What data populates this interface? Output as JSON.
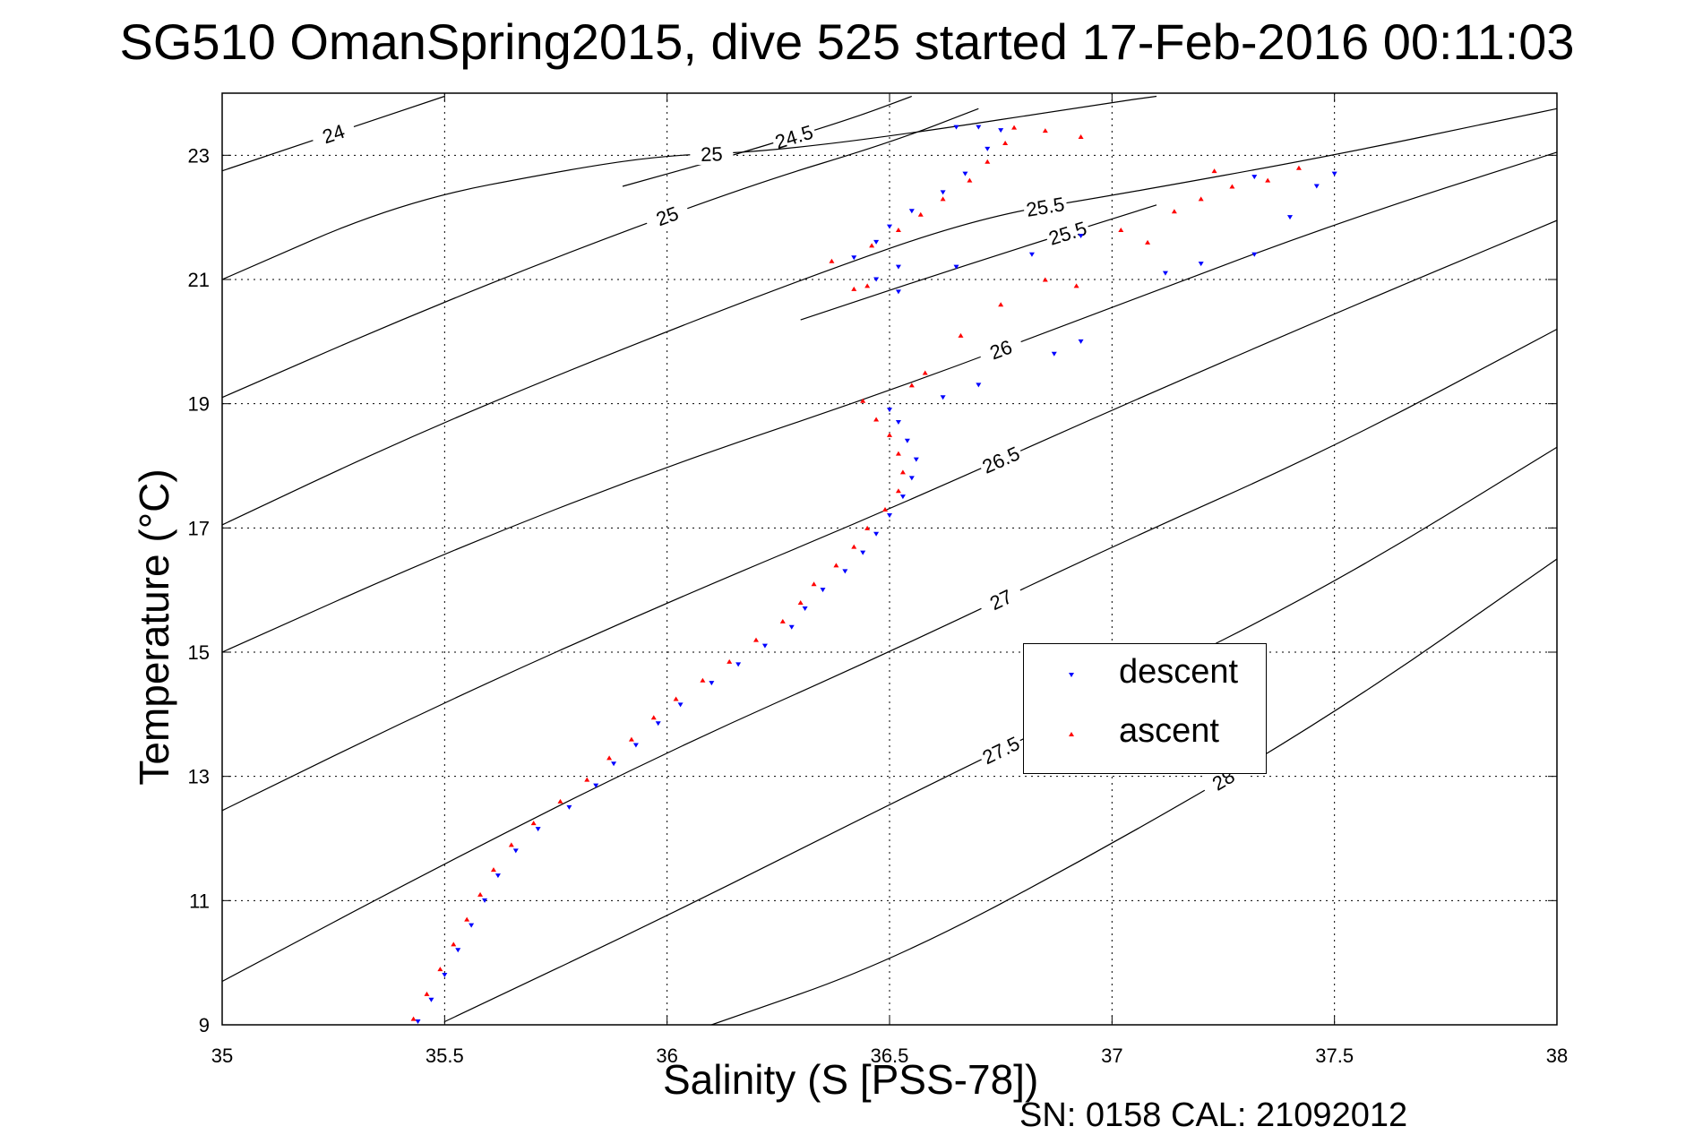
{
  "chart_data": {
    "type": "scatter",
    "title": "SG510 OmanSpring2015, dive 525 started 17-Feb-2016 00:11:03",
    "xlabel": "Salinity (S [PSS-78])",
    "ylabel": "Temperature (°C)",
    "xlim": [
      35,
      38
    ],
    "ylim": [
      9,
      24
    ],
    "xticks": [
      "35",
      "35.5",
      "36",
      "36.5",
      "37",
      "37.5",
      "38"
    ],
    "yticks": [
      "9",
      "11",
      "13",
      "15",
      "17",
      "19",
      "21",
      "23"
    ],
    "grid": true,
    "legend_position": "center-right",
    "density_contours": [
      {
        "label": "24",
        "points": [
          [
            35,
            22.75
          ],
          [
            35.5,
            23.95
          ]
        ]
      },
      {
        "label": "24.5",
        "points": [
          [
            35.9,
            22.5
          ],
          [
            36.15,
            23.0
          ],
          [
            36.42,
            23.6
          ],
          [
            36.55,
            23.95
          ]
        ]
      },
      {
        "label": "25",
        "points": [
          [
            35,
            21.0
          ],
          [
            35.4,
            22.25
          ],
          [
            35.8,
            22.8
          ],
          [
            36.0,
            23.0
          ],
          [
            36.2,
            23.05
          ],
          [
            36.5,
            23.3
          ],
          [
            37.0,
            23.85
          ],
          [
            37.1,
            23.95
          ]
        ]
      },
      {
        "label": "25",
        "points": [
          [
            35,
            19.1
          ],
          [
            35.4,
            20.35
          ],
          [
            35.8,
            21.5
          ],
          [
            36.2,
            22.55
          ],
          [
            36.5,
            23.2
          ],
          [
            36.7,
            23.75
          ]
        ]
      },
      {
        "label": "25.5",
        "points": [
          [
            35,
            17.05
          ],
          [
            35.4,
            18.4
          ],
          [
            35.8,
            19.6
          ],
          [
            36.3,
            21.0
          ],
          [
            36.7,
            22.0
          ],
          [
            37.0,
            22.35
          ],
          [
            37.5,
            23.0
          ],
          [
            37.9,
            23.6
          ],
          [
            38.0,
            23.75
          ]
        ]
      },
      {
        "label": "25.5",
        "points": [
          [
            36.3,
            20.35
          ],
          [
            36.7,
            21.3
          ],
          [
            37.1,
            22.2
          ]
        ]
      },
      {
        "label": "26",
        "points": [
          [
            35,
            15.0
          ],
          [
            35.5,
            16.6
          ],
          [
            36.0,
            18.0
          ],
          [
            36.5,
            19.2
          ],
          [
            37.0,
            20.55
          ],
          [
            37.5,
            21.9
          ],
          [
            38.0,
            23.05
          ]
        ]
      },
      {
        "label": "26.5",
        "points": [
          [
            35,
            12.45
          ],
          [
            35.5,
            14.2
          ],
          [
            36.0,
            15.8
          ],
          [
            36.5,
            17.3
          ],
          [
            37.0,
            18.9
          ],
          [
            37.5,
            20.45
          ],
          [
            38.0,
            21.95
          ]
        ]
      },
      {
        "label": "27",
        "points": [
          [
            35,
            9.7
          ],
          [
            35.5,
            11.6
          ],
          [
            36.0,
            13.4
          ],
          [
            36.5,
            15.0
          ],
          [
            37.0,
            16.7
          ],
          [
            37.5,
            18.3
          ],
          [
            38.0,
            20.2
          ]
        ]
      },
      {
        "label": "27.5",
        "points": [
          [
            35.5,
            9.05
          ],
          [
            36.0,
            10.75
          ],
          [
            36.5,
            12.55
          ],
          [
            37.0,
            14.3
          ],
          [
            37.5,
            16.1
          ],
          [
            38.0,
            18.3
          ]
        ]
      },
      {
        "label": "28",
        "points": [
          [
            36.1,
            9.0
          ],
          [
            36.5,
            10.0
          ],
          [
            37.0,
            11.9
          ],
          [
            37.5,
            14.0
          ],
          [
            38.0,
            16.5
          ]
        ]
      }
    ],
    "series": [
      {
        "name": "descent",
        "color": "#0000ff",
        "marker": "triangle-down",
        "points": [
          [
            35.44,
            9.05
          ],
          [
            35.47,
            9.4
          ],
          [
            35.5,
            9.8
          ],
          [
            35.53,
            10.2
          ],
          [
            35.56,
            10.6
          ],
          [
            35.59,
            11.0
          ],
          [
            35.62,
            11.4
          ],
          [
            35.66,
            11.8
          ],
          [
            35.71,
            12.15
          ],
          [
            35.78,
            12.5
          ],
          [
            35.84,
            12.85
          ],
          [
            35.88,
            13.2
          ],
          [
            35.93,
            13.5
          ],
          [
            35.98,
            13.85
          ],
          [
            36.03,
            14.15
          ],
          [
            36.1,
            14.5
          ],
          [
            36.16,
            14.8
          ],
          [
            36.22,
            15.1
          ],
          [
            36.28,
            15.4
          ],
          [
            36.31,
            15.7
          ],
          [
            36.35,
            16.0
          ],
          [
            36.4,
            16.3
          ],
          [
            36.44,
            16.6
          ],
          [
            36.47,
            16.9
          ],
          [
            36.5,
            17.2
          ],
          [
            36.53,
            17.5
          ],
          [
            36.55,
            17.8
          ],
          [
            36.56,
            18.1
          ],
          [
            36.54,
            18.4
          ],
          [
            36.52,
            18.7
          ],
          [
            36.5,
            18.9
          ],
          [
            36.62,
            19.1
          ],
          [
            36.7,
            19.3
          ],
          [
            36.87,
            19.8
          ],
          [
            36.93,
            20.0
          ],
          [
            36.52,
            20.8
          ],
          [
            36.47,
            21.0
          ],
          [
            36.52,
            21.2
          ],
          [
            36.42,
            21.35
          ],
          [
            36.47,
            21.6
          ],
          [
            36.5,
            21.85
          ],
          [
            36.55,
            22.1
          ],
          [
            36.62,
            22.4
          ],
          [
            36.67,
            22.7
          ],
          [
            36.72,
            23.1
          ],
          [
            36.75,
            23.4
          ],
          [
            36.7,
            23.45
          ],
          [
            36.65,
            23.45
          ],
          [
            36.93,
            21.7
          ],
          [
            36.82,
            21.4
          ],
          [
            36.65,
            21.2
          ],
          [
            37.12,
            21.1
          ],
          [
            37.2,
            21.25
          ],
          [
            37.32,
            21.4
          ],
          [
            37.4,
            22.0
          ],
          [
            37.5,
            22.7
          ],
          [
            37.46,
            22.5
          ],
          [
            37.32,
            22.65
          ]
        ]
      },
      {
        "name": "ascent",
        "color": "#ff0000",
        "marker": "triangle-up",
        "points": [
          [
            35.43,
            9.1
          ],
          [
            35.46,
            9.5
          ],
          [
            35.49,
            9.9
          ],
          [
            35.52,
            10.3
          ],
          [
            35.55,
            10.7
          ],
          [
            35.58,
            11.1
          ],
          [
            35.61,
            11.5
          ],
          [
            35.65,
            11.9
          ],
          [
            35.7,
            12.25
          ],
          [
            35.76,
            12.6
          ],
          [
            35.82,
            12.95
          ],
          [
            35.87,
            13.3
          ],
          [
            35.92,
            13.6
          ],
          [
            35.97,
            13.95
          ],
          [
            36.02,
            14.25
          ],
          [
            36.08,
            14.55
          ],
          [
            36.14,
            14.85
          ],
          [
            36.2,
            15.2
          ],
          [
            36.26,
            15.5
          ],
          [
            36.3,
            15.8
          ],
          [
            36.33,
            16.1
          ],
          [
            36.38,
            16.4
          ],
          [
            36.42,
            16.7
          ],
          [
            36.45,
            17.0
          ],
          [
            36.49,
            17.3
          ],
          [
            36.52,
            17.6
          ],
          [
            36.53,
            17.9
          ],
          [
            36.52,
            18.2
          ],
          [
            36.5,
            18.5
          ],
          [
            36.47,
            18.75
          ],
          [
            36.44,
            19.05
          ],
          [
            36.55,
            19.3
          ],
          [
            36.58,
            19.5
          ],
          [
            36.66,
            20.1
          ],
          [
            36.75,
            20.6
          ],
          [
            36.42,
            20.85
          ],
          [
            36.37,
            21.3
          ],
          [
            36.46,
            21.55
          ],
          [
            36.52,
            21.8
          ],
          [
            36.57,
            22.05
          ],
          [
            36.62,
            22.3
          ],
          [
            36.68,
            22.6
          ],
          [
            36.72,
            22.9
          ],
          [
            36.76,
            23.2
          ],
          [
            36.78,
            23.45
          ],
          [
            36.85,
            23.4
          ],
          [
            36.93,
            23.3
          ],
          [
            36.45,
            20.9
          ],
          [
            36.85,
            21.0
          ],
          [
            36.92,
            20.9
          ],
          [
            37.02,
            21.8
          ],
          [
            37.08,
            21.6
          ],
          [
            37.14,
            22.1
          ],
          [
            37.2,
            22.3
          ],
          [
            37.27,
            22.5
          ],
          [
            37.35,
            22.6
          ],
          [
            37.42,
            22.8
          ],
          [
            37.23,
            22.75
          ]
        ]
      }
    ]
  },
  "legend": {
    "descent": "descent",
    "ascent": "ascent"
  },
  "footer": {
    "sn_text": "SN: 0158  CAL: 21092012"
  }
}
